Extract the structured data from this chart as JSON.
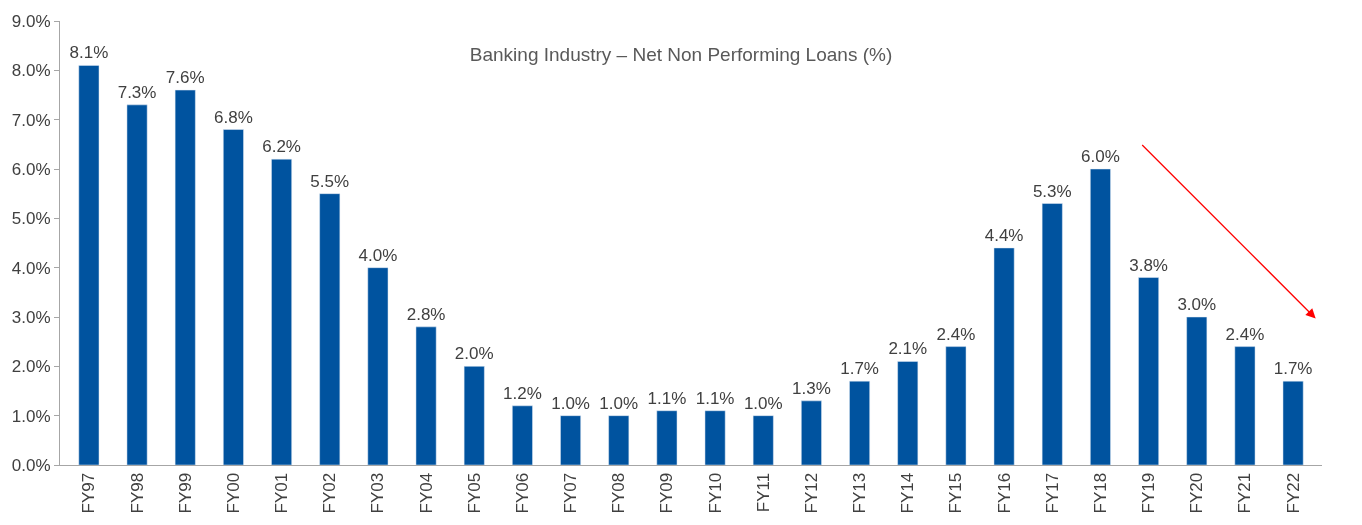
{
  "chart_data": {
    "type": "bar",
    "title": "Banking Industry – Net Non Performing Loans (%)",
    "categories": [
      "FY97",
      "FY98",
      "FY99",
      "FY00",
      "FY01",
      "FY02",
      "FY03",
      "FY04",
      "FY05",
      "FY06",
      "FY07",
      "FY08",
      "FY09",
      "FY10",
      "FY11",
      "FY12",
      "FY13",
      "FY14",
      "FY15",
      "FY16",
      "FY17",
      "FY18",
      "FY19",
      "FY20",
      "FY21",
      "FY22"
    ],
    "values": [
      8.1,
      7.3,
      7.6,
      6.8,
      6.2,
      5.5,
      4.0,
      2.8,
      2.0,
      1.2,
      1.0,
      1.0,
      1.1,
      1.1,
      1.0,
      1.3,
      1.7,
      2.1,
      2.4,
      4.4,
      5.3,
      6.0,
      3.8,
      3.0,
      2.4,
      1.7
    ],
    "value_labels": [
      "8.1%",
      "7.3%",
      "7.6%",
      "6.8%",
      "6.2%",
      "5.5%",
      "4.0%",
      "2.8%",
      "2.0%",
      "1.2%",
      "1.0%",
      "1.0%",
      "1.1%",
      "1.1%",
      "1.0%",
      "1.3%",
      "1.7%",
      "2.1%",
      "2.4%",
      "4.4%",
      "5.3%",
      "6.0%",
      "3.8%",
      "3.0%",
      "2.4%",
      "1.7%"
    ],
    "color": "#00539f",
    "ylim": [
      0,
      9
    ],
    "yticks": [
      {
        "value": 0,
        "label": "0.0%"
      },
      {
        "value": 1,
        "label": "1.0%"
      },
      {
        "value": 2,
        "label": "2.0%"
      },
      {
        "value": 3,
        "label": "3.0%"
      },
      {
        "value": 4,
        "label": "4.0%"
      },
      {
        "value": 5,
        "label": "5.0%"
      },
      {
        "value": 6,
        "label": "6.0%"
      },
      {
        "value": 7,
        "label": "7.0%"
      },
      {
        "value": 8,
        "label": "8.0%"
      },
      {
        "value": 9,
        "label": "9.0%"
      }
    ],
    "relative": false
  }
}
